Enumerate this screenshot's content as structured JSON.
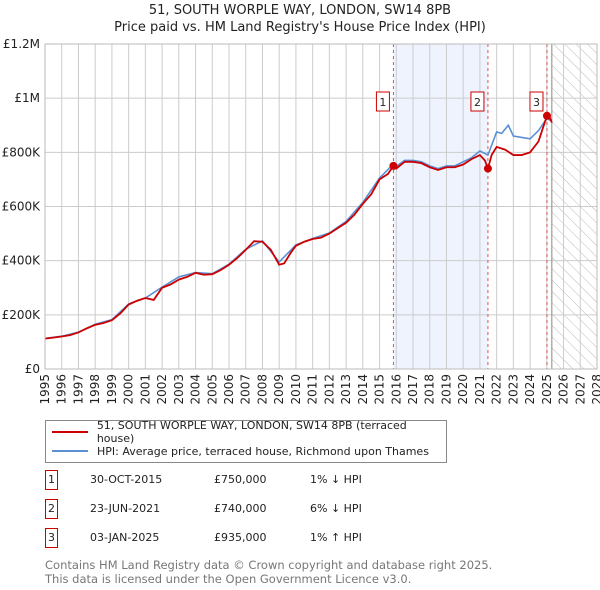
{
  "chart_data": {
    "type": "line",
    "title": "51, SOUTH WORPLE WAY, LONDON, SW14 8PB",
    "subtitle": "Price paid vs. HM Land Registry's House Price Index (HPI)",
    "xlim": [
      1995,
      2028
    ],
    "ylim": [
      0,
      1200000
    ],
    "y_ticks": [
      {
        "v": 0,
        "label": "£0"
      },
      {
        "v": 200000,
        "label": "£200K"
      },
      {
        "v": 400000,
        "label": "£400K"
      },
      {
        "v": 600000,
        "label": "£600K"
      },
      {
        "v": 800000,
        "label": "£800K"
      },
      {
        "v": 1000000,
        "label": "£1M"
      },
      {
        "v": 1200000,
        "label": "£1.2M"
      }
    ],
    "x_ticks": [
      "1995",
      "1996",
      "1997",
      "1998",
      "1999",
      "2000",
      "2001",
      "2002",
      "2003",
      "2004",
      "2005",
      "2006",
      "2007",
      "2008",
      "2009",
      "2010",
      "2011",
      "2012",
      "2013",
      "2014",
      "2015",
      "2016",
      "2017",
      "2018",
      "2019",
      "2020",
      "2021",
      "2022",
      "2023",
      "2024",
      "2025",
      "2026",
      "2027",
      "2028"
    ],
    "grid": true,
    "shaded_range": [
      2015.83,
      2021.48
    ],
    "forecast_hatch_from": 2025.3,
    "series": [
      {
        "name": "51, SOUTH WORPLE WAY, LONDON, SW14 8PB (terraced house)",
        "color": "#cc0000",
        "x": [
          1995,
          1995.5,
          1996,
          1996.5,
          1997,
          1997.5,
          1998,
          1998.5,
          1999,
          1999.5,
          2000,
          2000.5,
          2001,
          2001.5,
          2002,
          2002.5,
          2003,
          2003.5,
          2004,
          2004.5,
          2005,
          2005.5,
          2006,
          2006.5,
          2007,
          2007.5,
          2008,
          2008.5,
          2009,
          2009.3,
          2009.7,
          2010,
          2010.5,
          2011,
          2011.5,
          2012,
          2012.5,
          2013,
          2013.5,
          2014,
          2014.5,
          2015,
          2015.5,
          2015.83,
          2016,
          2016.5,
          2017,
          2017.5,
          2018,
          2018.5,
          2019,
          2019.5,
          2020,
          2020.5,
          2021,
          2021.3,
          2021.48,
          2021.7,
          2022,
          2022.5,
          2023,
          2023.5,
          2024,
          2024.5,
          2025.01,
          2025.2,
          2025.3
        ],
        "y": [
          112000,
          116000,
          120000,
          125000,
          135000,
          150000,
          163000,
          170000,
          180000,
          205000,
          238000,
          252000,
          262000,
          255000,
          300000,
          312000,
          330000,
          340000,
          355000,
          348000,
          350000,
          365000,
          385000,
          410000,
          440000,
          472000,
          470000,
          440000,
          385000,
          390000,
          430000,
          455000,
          470000,
          480000,
          485000,
          500000,
          520000,
          540000,
          570000,
          610000,
          645000,
          700000,
          720000,
          750000,
          740000,
          765000,
          765000,
          760000,
          745000,
          735000,
          745000,
          745000,
          755000,
          775000,
          790000,
          770000,
          740000,
          790000,
          820000,
          810000,
          790000,
          790000,
          800000,
          840000,
          935000,
          925000,
          910000
        ]
      },
      {
        "name": "HPI: Average price, terraced house, Richmond upon Thames",
        "color": "#5b8fd4",
        "x": [
          1995,
          1996,
          1997,
          1998,
          1999,
          2000,
          2001,
          2002,
          2003,
          2004,
          2005,
          2006,
          2007,
          2008,
          2009,
          2010,
          2011,
          2012,
          2013,
          2014,
          2015,
          2015.83,
          2016,
          2016.5,
          2017,
          2017.5,
          2018,
          2018.5,
          2019,
          2019.5,
          2020,
          2020.5,
          2021,
          2021.48,
          2022,
          2022.3,
          2022.7,
          2023,
          2023.5,
          2024,
          2024.5,
          2025,
          2025.3
        ],
        "y": [
          113000,
          121000,
          136000,
          165000,
          182000,
          240000,
          262000,
          302000,
          340000,
          356000,
          352000,
          387000,
          442000,
          473000,
          395000,
          458000,
          482000,
          502000,
          545000,
          615000,
          705000,
          757000,
          748000,
          770000,
          770000,
          765000,
          750000,
          740000,
          750000,
          750000,
          765000,
          780000,
          805000,
          790000,
          875000,
          870000,
          900000,
          860000,
          855000,
          850000,
          880000,
          925000,
          915000
        ]
      }
    ],
    "annotations": [
      {
        "label": "1",
        "x": 2015.83,
        "y": 750000
      },
      {
        "label": "2",
        "x": 2021.48,
        "y": 740000
      },
      {
        "label": "3",
        "x": 2025.01,
        "y": 935000
      }
    ]
  },
  "legend": {
    "red": "51, SOUTH WORPLE WAY, LONDON, SW14 8PB (terraced house)",
    "blue": "HPI: Average price, terraced house, Richmond upon Thames"
  },
  "transactions": [
    {
      "num": "1",
      "date": "30-OCT-2015",
      "price": "£750,000",
      "hpi": "1% ↓ HPI"
    },
    {
      "num": "2",
      "date": "23-JUN-2021",
      "price": "£740,000",
      "hpi": "6% ↓ HPI"
    },
    {
      "num": "3",
      "date": "03-JAN-2025",
      "price": "£935,000",
      "hpi": "1% ↑ HPI"
    }
  ],
  "footer": {
    "line1": "Contains HM Land Registry data © Crown copyright and database right 2025.",
    "line2": "This data is licensed under the Open Government Licence v3.0."
  }
}
